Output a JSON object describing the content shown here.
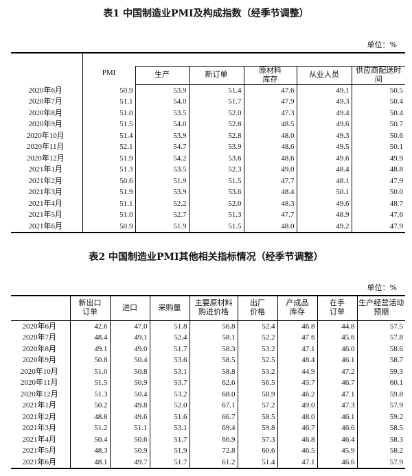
{
  "table1": {
    "title": "表1 中国制造业PMI及构成指数（经季节调整）",
    "unit": "单位：%",
    "pmi_header": "PMI",
    "sub_headers": [
      "生产",
      "新订单",
      "原材料\n库存",
      "从业人员",
      "供应商配送时\n间"
    ],
    "rows": [
      [
        "2020年6月",
        "50.9",
        "53.9",
        "51.4",
        "47.6",
        "49.1",
        "50.5"
      ],
      [
        "2020年7月",
        "51.1",
        "54.0",
        "51.7",
        "47.9",
        "49.3",
        "50.4"
      ],
      [
        "2020年8月",
        "51.0",
        "53.5",
        "52.0",
        "47.3",
        "49.4",
        "50.4"
      ],
      [
        "2020年9月",
        "51.5",
        "54.0",
        "52.8",
        "48.5",
        "49.6",
        "50.7"
      ],
      [
        "2020年10月",
        "51.4",
        "53.9",
        "52.8",
        "48.0",
        "49.3",
        "50.6"
      ],
      [
        "2020年11月",
        "52.1",
        "54.7",
        "53.9",
        "48.6",
        "49.5",
        "50.1"
      ],
      [
        "2020年12月",
        "51.9",
        "54.2",
        "53.6",
        "48.6",
        "49.6",
        "49.9"
      ],
      [
        "2021年1月",
        "51.3",
        "53.5",
        "52.3",
        "49.0",
        "48.4",
        "48.8"
      ],
      [
        "2021年2月",
        "50.6",
        "51.9",
        "51.5",
        "47.7",
        "48.1",
        "47.9"
      ],
      [
        "2021年3月",
        "51.9",
        "53.9",
        "53.6",
        "48.4",
        "50.1",
        "50.0"
      ],
      [
        "2021年4月",
        "51.1",
        "52.2",
        "52.0",
        "48.3",
        "49.6",
        "48.7"
      ],
      [
        "2021年5月",
        "51.0",
        "52.7",
        "51.3",
        "47.7",
        "48.9",
        "47.6"
      ],
      [
        "2021年6月",
        "50.9",
        "51.9",
        "51.5",
        "48.0",
        "49.2",
        "47.9"
      ]
    ]
  },
  "table2": {
    "title": "表2 中国制造业PMI其他相关指标情况（经季节调整）",
    "unit": "单位：%",
    "headers": [
      "新出口\n订单",
      "进口",
      "采购量",
      "主要原材料\n购进价格",
      "出厂\n价格",
      "产成品\n库存",
      "在手\n订单",
      "生产经营活动\n预期"
    ],
    "rows": [
      [
        "2020年6月",
        "42.6",
        "47.0",
        "51.8",
        "56.8",
        "52.4",
        "46.8",
        "44.8",
        "57.5"
      ],
      [
        "2020年7月",
        "48.4",
        "49.1",
        "52.4",
        "58.1",
        "52.2",
        "47.6",
        "45.6",
        "57.8"
      ],
      [
        "2020年8月",
        "49.1",
        "49.0",
        "51.7",
        "58.3",
        "53.2",
        "47.1",
        "46.0",
        "58.6"
      ],
      [
        "2020年9月",
        "50.8",
        "50.4",
        "53.6",
        "58.5",
        "52.5",
        "48.4",
        "46.1",
        "58.7"
      ],
      [
        "2020年10月",
        "51.0",
        "50.8",
        "53.1",
        "58.8",
        "53.2",
        "44.9",
        "47.2",
        "59.3"
      ],
      [
        "2020年11月",
        "51.5",
        "50.9",
        "53.7",
        "62.6",
        "56.5",
        "45.7",
        "46.7",
        "60.1"
      ],
      [
        "2020年12月",
        "51.3",
        "50.4",
        "53.2",
        "68.0",
        "58.9",
        "46.2",
        "47.1",
        "59.8"
      ],
      [
        "2021年1月",
        "50.2",
        "49.8",
        "52.0",
        "67.1",
        "57.2",
        "49.0",
        "47.3",
        "57.9"
      ],
      [
        "2021年2月",
        "48.8",
        "49.6",
        "51.6",
        "66.7",
        "58.5",
        "48.0",
        "46.1",
        "59.2"
      ],
      [
        "2021年3月",
        "51.2",
        "51.1",
        "53.1",
        "69.4",
        "59.8",
        "46.7",
        "46.6",
        "58.5"
      ],
      [
        "2021年4月",
        "50.4",
        "50.6",
        "51.7",
        "66.9",
        "57.3",
        "46.8",
        "46.4",
        "58.3"
      ],
      [
        "2021年5月",
        "48.3",
        "50.9",
        "51.9",
        "72.8",
        "60.6",
        "46.5",
        "45.9",
        "58.2"
      ],
      [
        "2021年6月",
        "48.1",
        "49.7",
        "51.7",
        "61.2",
        "51.4",
        "47.1",
        "46.6",
        "57.9"
      ]
    ]
  }
}
